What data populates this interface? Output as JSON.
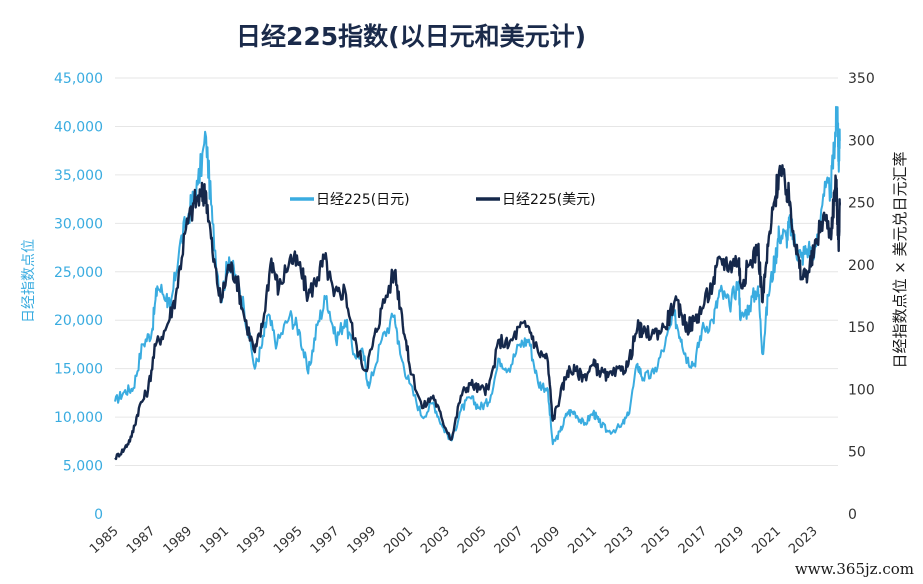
{
  "chart_data": {
    "type": "line",
    "title": "日经225指数(以日元和美元计)",
    "ylabel_left": "日经指数点位",
    "ylabel_right": "日经指数点位 × 美元兑日元汇率",
    "yleft_lim": [
      0,
      45000
    ],
    "yright_lim": [
      0,
      350
    ],
    "yleft_ticks": [
      "0",
      "5,000",
      "10,000",
      "15,000",
      "20,000",
      "25,000",
      "30,000",
      "35,000",
      "40,000",
      "45,000"
    ],
    "yright_ticks": [
      "0",
      "50",
      "100",
      "150",
      "200",
      "250",
      "300",
      "350"
    ],
    "x_ticks": [
      "1985",
      "1987",
      "1989",
      "1991",
      "1993",
      "1995",
      "1997",
      "1999",
      "2001",
      "2003",
      "2005",
      "2007",
      "2009",
      "2011",
      "2013",
      "2015",
      "2017",
      "2019",
      "2021",
      "2023"
    ],
    "xlim": [
      1985,
      2024.3
    ],
    "grid": true,
    "legend_position": "top-center",
    "series": [
      {
        "name": "日经225(日元)",
        "axis": "left",
        "color": "#3aace0",
        "points": [
          [
            1985.0,
            11600
          ],
          [
            1985.5,
            12600
          ],
          [
            1986.0,
            13000
          ],
          [
            1986.5,
            17500
          ],
          [
            1987.0,
            18800
          ],
          [
            1987.3,
            23500
          ],
          [
            1987.8,
            22500
          ],
          [
            1988.0,
            21000
          ],
          [
            1988.5,
            27500
          ],
          [
            1989.0,
            31000
          ],
          [
            1989.5,
            34000
          ],
          [
            1989.95,
            38900
          ],
          [
            1990.3,
            30000
          ],
          [
            1990.75,
            22000
          ],
          [
            1991.2,
            26500
          ],
          [
            1991.6,
            24000
          ],
          [
            1992.0,
            21500
          ],
          [
            1992.6,
            15000
          ],
          [
            1993.0,
            17500
          ],
          [
            1993.3,
            20500
          ],
          [
            1993.8,
            17500
          ],
          [
            1994.5,
            20500
          ],
          [
            1995.0,
            19000
          ],
          [
            1995.5,
            14500
          ],
          [
            1996.0,
            19500
          ],
          [
            1996.5,
            22500
          ],
          [
            1997.0,
            18000
          ],
          [
            1997.5,
            20000
          ],
          [
            1998.0,
            16500
          ],
          [
            1998.5,
            16500
          ],
          [
            1998.8,
            13000
          ],
          [
            1999.5,
            18000
          ],
          [
            2000.2,
            20500
          ],
          [
            2000.5,
            16500
          ],
          [
            2001.0,
            13500
          ],
          [
            2001.7,
            10000
          ],
          [
            2002.3,
            11500
          ],
          [
            2002.8,
            9000
          ],
          [
            2003.3,
            7600
          ],
          [
            2003.8,
            10700
          ],
          [
            2004.3,
            12000
          ],
          [
            2004.8,
            11000
          ],
          [
            2005.3,
            11500
          ],
          [
            2005.9,
            16000
          ],
          [
            2006.4,
            15000
          ],
          [
            2007.0,
            17500
          ],
          [
            2007.5,
            18000
          ],
          [
            2008.0,
            13500
          ],
          [
            2008.5,
            13000
          ],
          [
            2008.8,
            7200
          ],
          [
            2009.2,
            8500
          ],
          [
            2009.6,
            10500
          ],
          [
            2010.0,
            10500
          ],
          [
            2010.5,
            9200
          ],
          [
            2011.0,
            10500
          ],
          [
            2011.3,
            9500
          ],
          [
            2011.8,
            8500
          ],
          [
            2012.5,
            9000
          ],
          [
            2012.9,
            10200
          ],
          [
            2013.4,
            15500
          ],
          [
            2013.7,
            14000
          ],
          [
            2014.3,
            14500
          ],
          [
            2014.9,
            17500
          ],
          [
            2015.4,
            20500
          ],
          [
            2015.8,
            18000
          ],
          [
            2016.1,
            16000
          ],
          [
            2016.5,
            15500
          ],
          [
            2016.9,
            19000
          ],
          [
            2017.5,
            20000
          ],
          [
            2017.9,
            23000
          ],
          [
            2018.4,
            21500
          ],
          [
            2018.9,
            24000
          ],
          [
            2019.0,
            20000
          ],
          [
            2019.5,
            21500
          ],
          [
            2019.95,
            23500
          ],
          [
            2020.2,
            16500
          ],
          [
            2020.5,
            22500
          ],
          [
            2020.9,
            26500
          ],
          [
            2021.1,
            29000
          ],
          [
            2021.5,
            28500
          ],
          [
            2021.7,
            30000
          ],
          [
            2022.0,
            27500
          ],
          [
            2022.3,
            26500
          ],
          [
            2022.7,
            27500
          ],
          [
            2023.0,
            26500
          ],
          [
            2023.5,
            33000
          ],
          [
            2023.9,
            33500
          ],
          [
            2024.1,
            38000
          ],
          [
            2024.2,
            40500
          ],
          [
            2024.28,
            42000
          ],
          [
            2024.33,
            36000
          ],
          [
            2024.4,
            38500
          ]
        ]
      },
      {
        "name": "日经225(美元)",
        "axis": "right",
        "color": "#15284b",
        "points": [
          [
            1985.0,
            45
          ],
          [
            1985.5,
            52
          ],
          [
            1985.9,
            62
          ],
          [
            1986.3,
            85
          ],
          [
            1986.8,
            100
          ],
          [
            1987.2,
            135
          ],
          [
            1987.8,
            150
          ],
          [
            1988.3,
            175
          ],
          [
            1988.8,
            225
          ],
          [
            1989.3,
            250
          ],
          [
            1989.7,
            255
          ],
          [
            1989.95,
            258
          ],
          [
            1990.3,
            210
          ],
          [
            1990.75,
            170
          ],
          [
            1991.2,
            200
          ],
          [
            1991.6,
            190
          ],
          [
            1992.0,
            160
          ],
          [
            1992.6,
            130
          ],
          [
            1993.0,
            150
          ],
          [
            1993.5,
            205
          ],
          [
            1993.9,
            180
          ],
          [
            1994.5,
            205
          ],
          [
            1995.0,
            200
          ],
          [
            1995.5,
            175
          ],
          [
            1996.0,
            190
          ],
          [
            1996.4,
            205
          ],
          [
            1996.9,
            175
          ],
          [
            1997.5,
            180
          ],
          [
            1998.0,
            140
          ],
          [
            1998.6,
            115
          ],
          [
            1999.0,
            135
          ],
          [
            1999.5,
            165
          ],
          [
            2000.2,
            195
          ],
          [
            2000.6,
            160
          ],
          [
            2001.0,
            120
          ],
          [
            2001.7,
            85
          ],
          [
            2002.3,
            95
          ],
          [
            2002.8,
            75
          ],
          [
            2003.3,
            60
          ],
          [
            2003.8,
            95
          ],
          [
            2004.3,
            105
          ],
          [
            2004.8,
            100
          ],
          [
            2005.3,
            100
          ],
          [
            2005.9,
            140
          ],
          [
            2006.4,
            135
          ],
          [
            2007.0,
            150
          ],
          [
            2007.5,
            150
          ],
          [
            2008.0,
            130
          ],
          [
            2008.5,
            125
          ],
          [
            2008.8,
            75
          ],
          [
            2009.2,
            95
          ],
          [
            2009.6,
            115
          ],
          [
            2010.0,
            115
          ],
          [
            2010.5,
            110
          ],
          [
            2011.0,
            120
          ],
          [
            2011.3,
            115
          ],
          [
            2011.8,
            110
          ],
          [
            2012.5,
            115
          ],
          [
            2012.9,
            120
          ],
          [
            2013.4,
            150
          ],
          [
            2013.7,
            145
          ],
          [
            2014.3,
            145
          ],
          [
            2014.9,
            150
          ],
          [
            2015.4,
            170
          ],
          [
            2015.8,
            160
          ],
          [
            2016.1,
            150
          ],
          [
            2016.5,
            155
          ],
          [
            2016.9,
            165
          ],
          [
            2017.5,
            185
          ],
          [
            2017.9,
            205
          ],
          [
            2018.4,
            200
          ],
          [
            2018.9,
            205
          ],
          [
            2019.0,
            185
          ],
          [
            2019.5,
            200
          ],
          [
            2019.95,
            215
          ],
          [
            2020.2,
            170
          ],
          [
            2020.5,
            215
          ],
          [
            2020.9,
            255
          ],
          [
            2021.1,
            275
          ],
          [
            2021.5,
            260
          ],
          [
            2021.7,
            250
          ],
          [
            2022.0,
            215
          ],
          [
            2022.3,
            190
          ],
          [
            2022.7,
            195
          ],
          [
            2023.0,
            210
          ],
          [
            2023.5,
            240
          ],
          [
            2023.9,
            225
          ],
          [
            2024.1,
            255
          ],
          [
            2024.2,
            265
          ],
          [
            2024.28,
            235
          ],
          [
            2024.33,
            215
          ],
          [
            2024.4,
            250
          ]
        ]
      }
    ]
  },
  "watermark": "www.365jz.com"
}
